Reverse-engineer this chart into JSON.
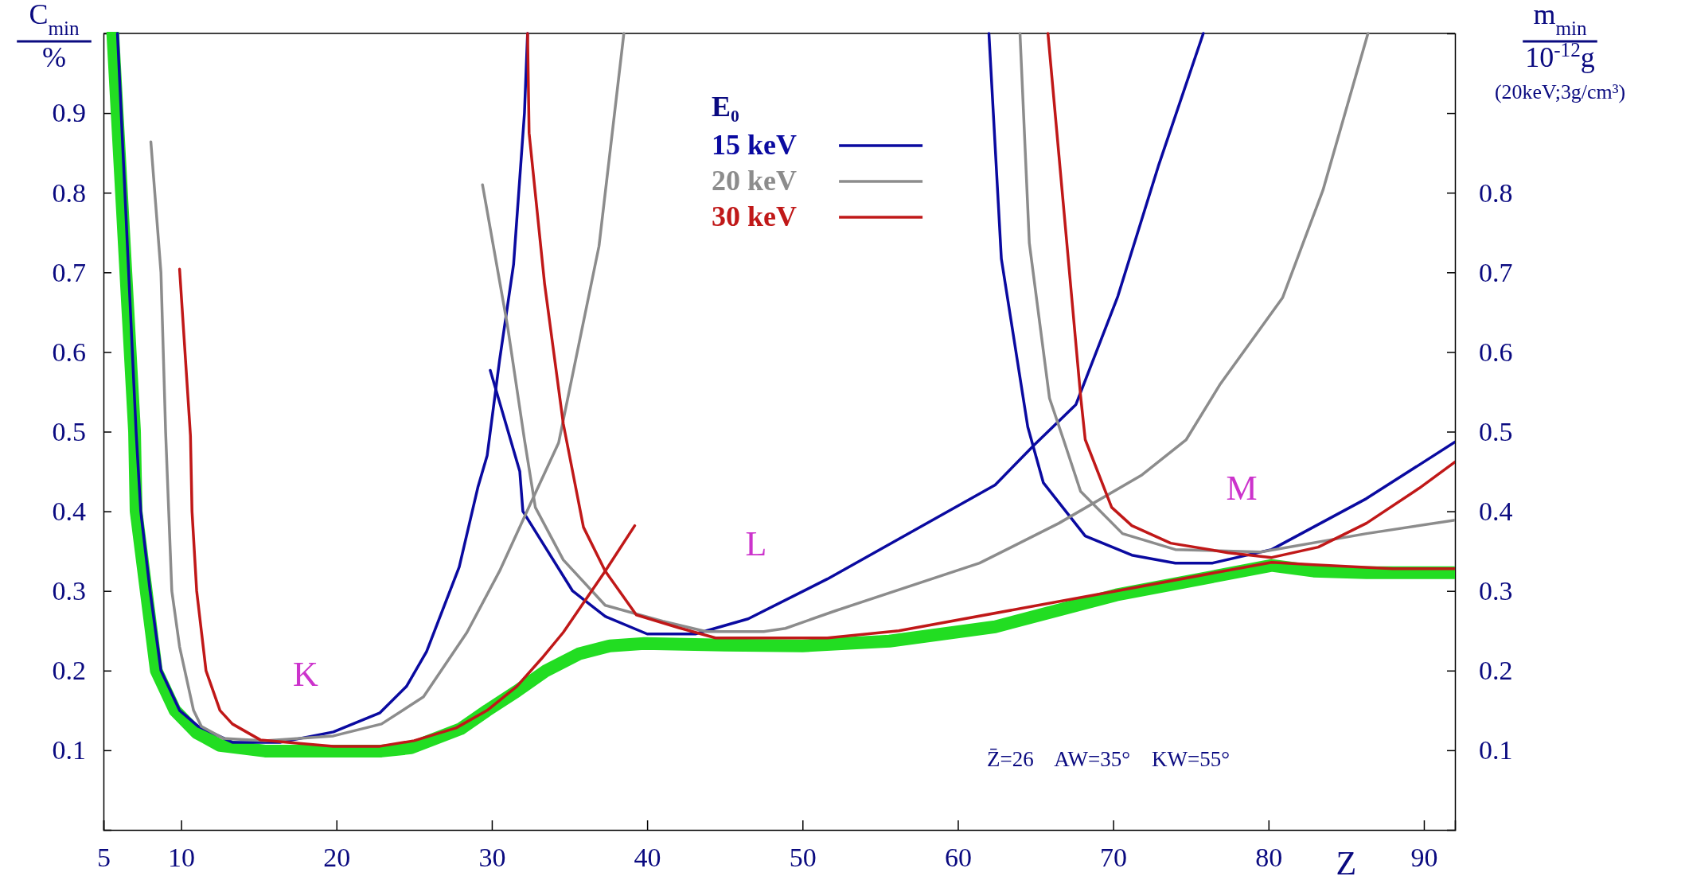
{
  "chart_data": {
    "type": "line",
    "xlabel": "Z",
    "ylabel": "C$_{min}$ %",
    "y2label": "m$_{min}$ 10$^{-12}$g (20keV;3g/cm³)",
    "legend_title": "E₀",
    "xlim": [
      5,
      92
    ],
    "xticks": [
      5,
      10,
      20,
      30,
      40,
      50,
      60,
      70,
      80,
      90
    ],
    "ylim": [
      0,
      1
    ],
    "yticks": [
      0.1,
      0.2,
      0.3,
      0.4,
      0.5,
      0.6,
      0.7,
      0.8,
      0.9
    ],
    "y2lim": [
      0,
      1
    ],
    "y2ticks": [
      0.1,
      0.2,
      0.3,
      0.4,
      0.5,
      0.6,
      0.7,
      0.8,
      {
        "value": 0.9,
        "label": null
      }
    ],
    "grid": false,
    "legend": "top",
    "marker": "none",
    "line_style": "solid",
    "annotations": [
      "K",
      "L",
      "M",
      "Z̄=26    AW=35°    KW=55°"
    ],
    "series": [
      {
        "color": "#22dd22",
        "x": [
          5.6,
          7.0,
          7.1,
          8.4,
          9.6,
          11.0,
          12.5,
          15.4,
          22.9,
          24.8,
          28.0,
          29.7,
          31.6,
          33.5,
          35.6,
          37.6,
          39.8,
          45,
          50,
          55.6,
          62.4,
          70.2,
          80.2,
          82.9,
          86.3,
          92
        ],
        "values": [
          1.0,
          0.5,
          0.4,
          0.2,
          0.15,
          0.122,
          0.106,
          0.099,
          0.099,
          0.103,
          0.127,
          0.15,
          0.174,
          0.2,
          0.221,
          0.231,
          0.234,
          0.232,
          0.231,
          0.237,
          0.255,
          0.295,
          0.332,
          0.325,
          0.323,
          0.323
        ]
      },
      {
        "name": "15 keV",
        "color": "#0a0aa0",
        "x": [
          5.9,
          7.1,
          7.4,
          8.0,
          8.7,
          9.9,
          11.1,
          13.3,
          16.4,
          19.8,
          22.8,
          24.5,
          25.8,
          27.9,
          29.1,
          29.7,
          30.5,
          31.4,
          32.1,
          32.3
        ],
        "values": [
          1.0,
          0.5,
          0.4,
          0.3,
          0.2,
          0.15,
          0.13,
          0.11,
          0.11,
          0.123,
          0.147,
          0.18,
          0.224,
          0.33,
          0.43,
          0.47,
          0.59,
          0.71,
          0.9,
          1.0
        ]
      },
      {
        "color": "#0a0aa0",
        "x": [
          29.9,
          31.8,
          32.0,
          35.2,
          37.3,
          40.0,
          43.1,
          46.5,
          51.6,
          62.4,
          64.9,
          67.6,
          70.3,
          72.9,
          75.8
        ],
        "values": [
          0.577,
          0.45,
          0.4,
          0.3,
          0.268,
          0.246,
          0.246,
          0.265,
          0.315,
          0.433,
          0.483,
          0.534,
          0.67,
          0.833,
          1.0
        ]
      },
      {
        "color": "#0a0aa0",
        "x": [
          62.0,
          62.8,
          64.5,
          65.5,
          68.2,
          71.2,
          74.0,
          76.4,
          80.2,
          86.3,
          92
        ],
        "values": [
          1.0,
          0.717,
          0.506,
          0.436,
          0.369,
          0.345,
          0.335,
          0.335,
          0.352,
          0.416,
          0.487
        ]
      },
      {
        "name": "20 keV",
        "color": "#8c8c8c",
        "x": [
          8.05,
          8.7,
          9.0,
          9.2,
          9.4,
          9.9,
          10.8,
          11.3,
          12.7,
          15.4,
          19.8,
          22.9,
          25.6,
          28.4,
          30.5,
          32.5,
          34.3,
          36.9,
          38.5
        ],
        "values": [
          0.864,
          0.7,
          0.5,
          0.4,
          0.3,
          0.23,
          0.15,
          0.13,
          0.115,
          0.112,
          0.118,
          0.133,
          0.167,
          0.248,
          0.325,
          0.41,
          0.486,
          0.733,
          1.0
        ]
      },
      {
        "color": "#8c8c8c",
        "x": [
          29.4,
          31.0,
          32.1,
          32.8,
          34.6,
          37.3,
          41.0,
          43.8,
          47.5,
          48.9,
          52.1,
          61.4,
          66.5,
          71.8,
          74.7,
          76.9,
          80.9,
          83.5,
          86.4
        ],
        "values": [
          0.81,
          0.634,
          0.49,
          0.405,
          0.339,
          0.282,
          0.262,
          0.249,
          0.249,
          0.253,
          0.275,
          0.335,
          0.385,
          0.445,
          0.49,
          0.56,
          0.668,
          0.803,
          1.0
        ]
      },
      {
        "color": "#8c8c8c",
        "x": [
          64.0,
          64.6,
          65.9,
          66.8,
          67.9,
          70.6,
          74.0,
          79.5,
          86.3,
          92
        ],
        "values": [
          1.0,
          0.737,
          0.542,
          0.49,
          0.425,
          0.372,
          0.352,
          0.349,
          0.372,
          0.389
        ]
      },
      {
        "name": "30 keV",
        "color": "#c01818",
        "x": [
          9.9,
          10.6,
          10.7,
          11.0,
          11.6,
          12.5,
          13.3,
          15.1,
          19.8,
          22.8,
          25.0,
          27.7,
          29.7,
          31.6,
          33.2,
          34.6,
          37.3,
          39.2
        ],
        "values": [
          0.704,
          0.495,
          0.4,
          0.3,
          0.2,
          0.15,
          0.133,
          0.113,
          0.105,
          0.105,
          0.112,
          0.128,
          0.15,
          0.18,
          0.215,
          0.248,
          0.325,
          0.382
        ]
      },
      {
        "color": "#c01818",
        "x": [
          32.3,
          32.4,
          33.4,
          34.6,
          35.9,
          37.3,
          39.3,
          42.0,
          44.4,
          51.6,
          56.2,
          70.2,
          80.2,
          82.9,
          88.0,
          92
        ],
        "values": [
          1.0,
          0.875,
          0.685,
          0.51,
          0.38,
          0.325,
          0.27,
          0.254,
          0.241,
          0.241,
          0.25,
          0.3,
          0.336,
          0.333,
          0.328,
          0.328
        ]
      },
      {
        "color": "#c01818",
        "x": [
          65.8,
          67.9,
          68.2,
          69.9,
          71.2,
          73.7,
          77.4,
          80.2,
          83.2,
          86.3,
          89.7,
          92
        ],
        "values": [
          1.0,
          0.545,
          0.49,
          0.405,
          0.382,
          0.36,
          0.348,
          0.342,
          0.355,
          0.385,
          0.429,
          0.462
        ]
      }
    ]
  }
}
